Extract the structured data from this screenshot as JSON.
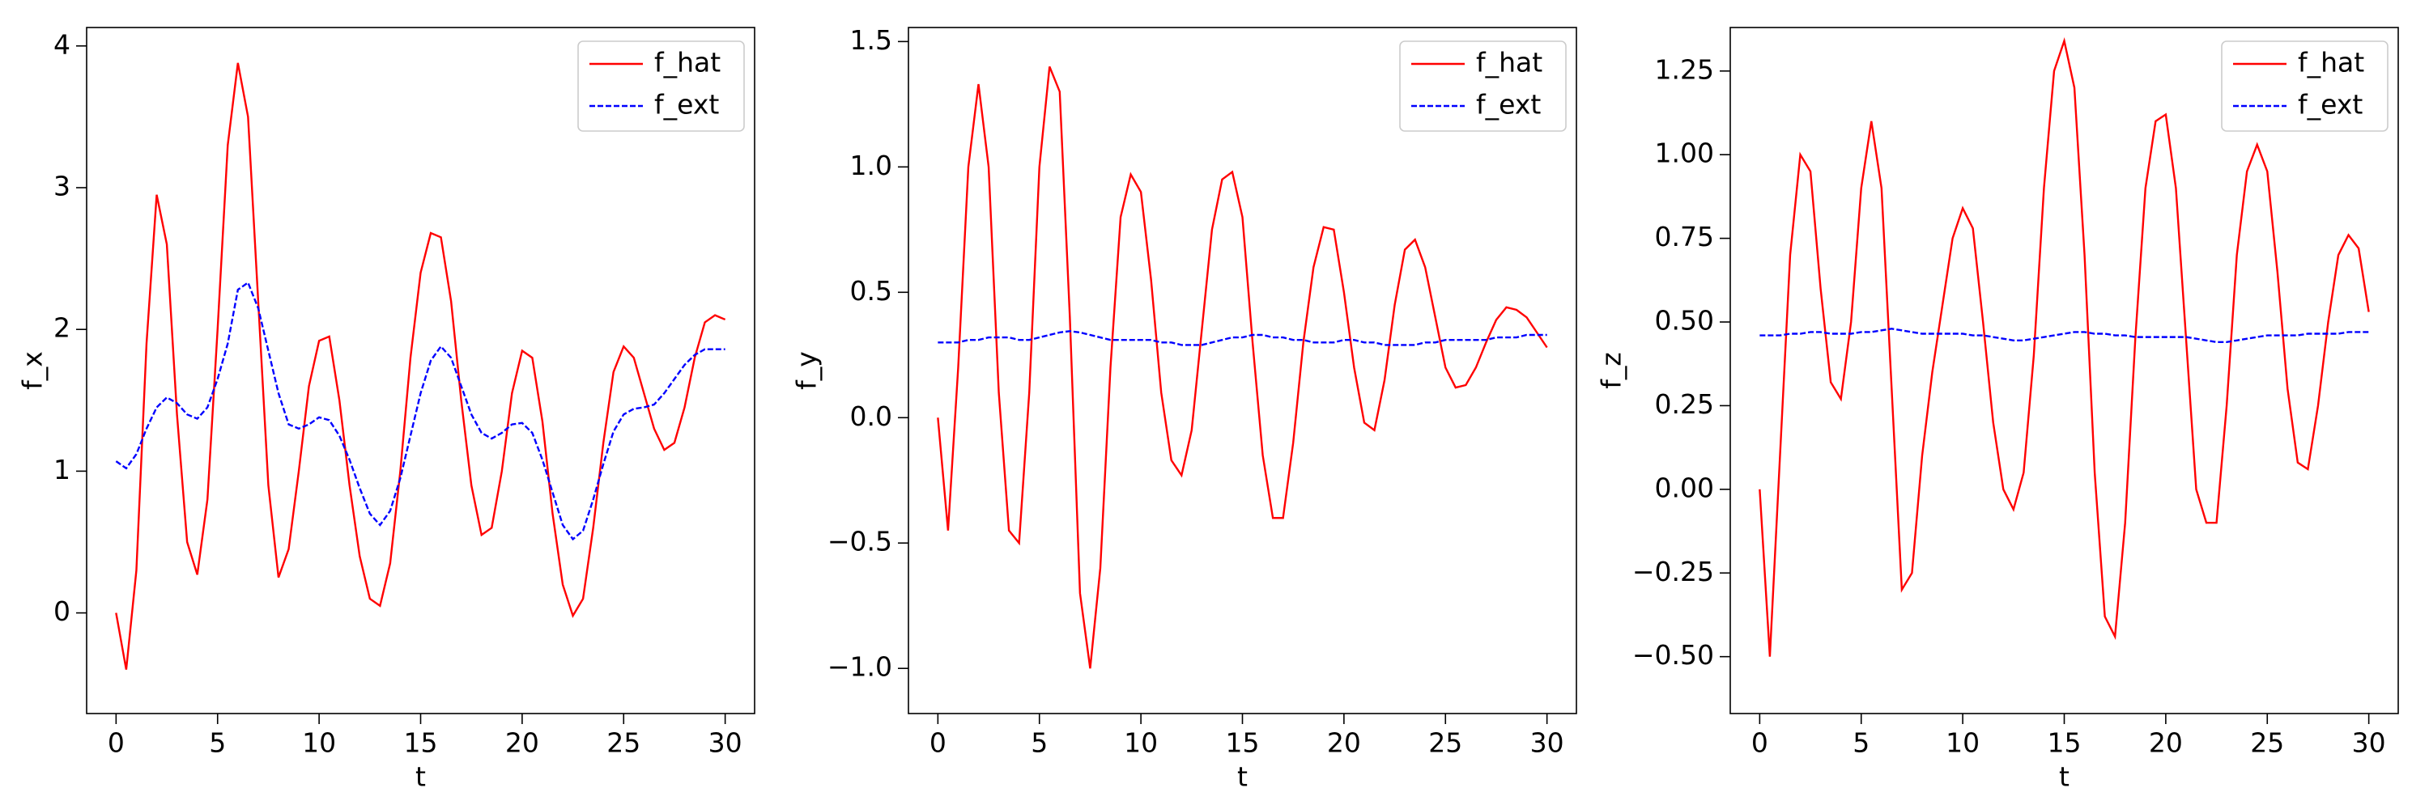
{
  "chart_data": [
    {
      "type": "line",
      "xlabel": "t",
      "ylabel": "f_x",
      "legend": "upper right",
      "x": [
        0,
        0.5,
        1,
        1.5,
        2,
        2.5,
        3,
        3.5,
        4,
        4.5,
        5,
        5.5,
        6,
        6.5,
        7,
        7.5,
        8,
        8.5,
        9,
        9.5,
        10,
        10.5,
        11,
        11.5,
        12,
        12.5,
        13,
        13.5,
        14,
        14.5,
        15,
        15.5,
        16,
        16.5,
        17,
        17.5,
        18,
        18.5,
        19,
        19.5,
        20,
        20.5,
        21,
        21.5,
        22,
        22.5,
        23,
        23.5,
        24,
        24.5,
        25,
        25.5,
        26,
        26.5,
        27,
        27.5,
        28,
        28.5,
        29,
        29.5,
        30
      ],
      "series": [
        {
          "name": "f_hat",
          "color": "#ff0000",
          "linestyle": "solid",
          "values": [
            0,
            -0.4,
            0.3,
            1.9,
            2.95,
            2.6,
            1.4,
            0.5,
            0.27,
            0.8,
            2.0,
            3.3,
            3.88,
            3.5,
            2.2,
            0.9,
            0.25,
            0.45,
            1.0,
            1.6,
            1.92,
            1.95,
            1.5,
            0.9,
            0.4,
            0.1,
            0.05,
            0.35,
            1.0,
            1.8,
            2.4,
            2.68,
            2.65,
            2.2,
            1.5,
            0.9,
            0.55,
            0.6,
            1.0,
            1.55,
            1.85,
            1.8,
            1.35,
            0.7,
            0.2,
            -0.02,
            0.1,
            0.6,
            1.2,
            1.7,
            1.88,
            1.8,
            1.55,
            1.3,
            1.15,
            1.2,
            1.45,
            1.8,
            2.05,
            2.1,
            2.07
          ]
        },
        {
          "name": "f_ext",
          "color": "#0000ff",
          "linestyle": "dashed",
          "values": [
            1.07,
            1.02,
            1.12,
            1.3,
            1.45,
            1.52,
            1.48,
            1.4,
            1.37,
            1.45,
            1.65,
            1.9,
            2.28,
            2.33,
            2.15,
            1.85,
            1.55,
            1.33,
            1.3,
            1.33,
            1.38,
            1.36,
            1.25,
            1.08,
            0.88,
            0.7,
            0.62,
            0.72,
            0.95,
            1.25,
            1.55,
            1.78,
            1.88,
            1.8,
            1.6,
            1.4,
            1.27,
            1.23,
            1.27,
            1.33,
            1.34,
            1.27,
            1.08,
            0.85,
            0.62,
            0.52,
            0.58,
            0.8,
            1.05,
            1.28,
            1.4,
            1.44,
            1.45,
            1.47,
            1.55,
            1.65,
            1.75,
            1.82,
            1.86,
            1.86,
            1.86
          ]
        }
      ],
      "xlim": [
        -1.45,
        31.45
      ],
      "ylim": [
        -0.71,
        4.13
      ],
      "xticks": [
        0,
        5,
        10,
        15,
        20,
        25,
        30
      ],
      "yticks": [
        0,
        1,
        2,
        3,
        4
      ]
    },
    {
      "type": "line",
      "xlabel": "t",
      "ylabel": "f_y",
      "legend": "upper right",
      "x": [
        0,
        0.5,
        1,
        1.5,
        2,
        2.5,
        3,
        3.5,
        4,
        4.5,
        5,
        5.5,
        6,
        6.5,
        7,
        7.5,
        8,
        8.5,
        9,
        9.5,
        10,
        10.5,
        11,
        11.5,
        12,
        12.5,
        13,
        13.5,
        14,
        14.5,
        15,
        15.5,
        16,
        16.5,
        17,
        17.5,
        18,
        18.5,
        19,
        19.5,
        20,
        20.5,
        21,
        21.5,
        22,
        22.5,
        23,
        23.5,
        24,
        24.5,
        25,
        25.5,
        26,
        26.5,
        27,
        27.5,
        28,
        28.5,
        29,
        29.5,
        30
      ],
      "series": [
        {
          "name": "f_hat",
          "color": "#ff0000",
          "linestyle": "solid",
          "values": [
            0,
            -0.45,
            0.2,
            1.0,
            1.33,
            1.0,
            0.1,
            -0.45,
            -0.5,
            0.1,
            1.0,
            1.4,
            1.3,
            0.4,
            -0.7,
            -1.0,
            -0.6,
            0.2,
            0.8,
            0.97,
            0.9,
            0.55,
            0.1,
            -0.17,
            -0.23,
            -0.05,
            0.35,
            0.75,
            0.95,
            0.98,
            0.8,
            0.3,
            -0.15,
            -0.4,
            -0.4,
            -0.1,
            0.3,
            0.6,
            0.76,
            0.75,
            0.5,
            0.2,
            -0.02,
            -0.05,
            0.15,
            0.45,
            0.67,
            0.71,
            0.6,
            0.4,
            0.2,
            0.12,
            0.13,
            0.2,
            0.3,
            0.39,
            0.44,
            0.43,
            0.4,
            0.34,
            0.28
          ]
        },
        {
          "name": "f_ext",
          "color": "#0000ff",
          "linestyle": "dashed",
          "values": [
            0.3,
            0.3,
            0.3,
            0.31,
            0.31,
            0.32,
            0.32,
            0.32,
            0.31,
            0.31,
            0.32,
            0.33,
            0.34,
            0.345,
            0.34,
            0.33,
            0.32,
            0.31,
            0.31,
            0.31,
            0.31,
            0.31,
            0.3,
            0.3,
            0.29,
            0.29,
            0.29,
            0.3,
            0.31,
            0.32,
            0.32,
            0.33,
            0.33,
            0.32,
            0.32,
            0.31,
            0.31,
            0.3,
            0.3,
            0.3,
            0.31,
            0.31,
            0.3,
            0.3,
            0.29,
            0.29,
            0.29,
            0.29,
            0.3,
            0.3,
            0.31,
            0.31,
            0.31,
            0.31,
            0.31,
            0.32,
            0.32,
            0.32,
            0.33,
            0.33,
            0.33
          ]
        }
      ],
      "xlim": [
        -1.45,
        31.45
      ],
      "ylim": [
        -1.18,
        1.556
      ],
      "xticks": [
        0,
        5,
        10,
        15,
        20,
        25,
        30
      ],
      "yticks": [
        {
          "value": -1.0,
          "label": "−1.0"
        },
        {
          "value": -0.5,
          "label": "−0.5"
        },
        {
          "value": 0.0,
          "label": "0.0"
        },
        0.5,
        {
          "value": 1.0,
          "label": "1.0"
        },
        1.5
      ]
    },
    {
      "type": "line",
      "xlabel": "t",
      "ylabel": "f_z",
      "legend": "upper right",
      "x": [
        0,
        0.5,
        1,
        1.5,
        2,
        2.5,
        3,
        3.5,
        4,
        4.5,
        5,
        5.5,
        6,
        6.5,
        7,
        7.5,
        8,
        8.5,
        9,
        9.5,
        10,
        10.5,
        11,
        11.5,
        12,
        12.5,
        13,
        13.5,
        14,
        14.5,
        15,
        15.5,
        16,
        16.5,
        17,
        17.5,
        18,
        18.5,
        19,
        19.5,
        20,
        20.5,
        21,
        21.5,
        22,
        22.5,
        23,
        23.5,
        24,
        24.5,
        25,
        25.5,
        26,
        26.5,
        27,
        27.5,
        28,
        28.5,
        29,
        29.5,
        30
      ],
      "series": [
        {
          "name": "f_hat",
          "color": "#ff0000",
          "linestyle": "solid",
          "values": [
            0,
            -0.5,
            0.1,
            0.7,
            1.0,
            0.95,
            0.6,
            0.32,
            0.27,
            0.5,
            0.9,
            1.1,
            0.9,
            0.3,
            -0.3,
            -0.25,
            0.1,
            0.35,
            0.55,
            0.75,
            0.84,
            0.78,
            0.5,
            0.2,
            0.0,
            -0.06,
            0.05,
            0.4,
            0.9,
            1.25,
            1.34,
            1.2,
            0.7,
            0.05,
            -0.38,
            -0.44,
            -0.1,
            0.45,
            0.9,
            1.1,
            1.12,
            0.9,
            0.45,
            0.0,
            -0.1,
            -0.1,
            0.25,
            0.7,
            0.95,
            1.03,
            0.95,
            0.65,
            0.3,
            0.08,
            0.06,
            0.25,
            0.5,
            0.7,
            0.76,
            0.72,
            0.53
          ]
        },
        {
          "name": "f_ext",
          "color": "#0000ff",
          "linestyle": "dashed",
          "values": [
            0.46,
            0.46,
            0.46,
            0.465,
            0.465,
            0.47,
            0.47,
            0.465,
            0.465,
            0.465,
            0.47,
            0.47,
            0.475,
            0.48,
            0.475,
            0.47,
            0.465,
            0.465,
            0.465,
            0.465,
            0.465,
            0.46,
            0.46,
            0.455,
            0.45,
            0.445,
            0.445,
            0.45,
            0.455,
            0.46,
            0.465,
            0.47,
            0.47,
            0.465,
            0.465,
            0.46,
            0.46,
            0.455,
            0.455,
            0.455,
            0.455,
            0.455,
            0.455,
            0.45,
            0.445,
            0.44,
            0.44,
            0.445,
            0.45,
            0.455,
            0.46,
            0.46,
            0.46,
            0.46,
            0.465,
            0.465,
            0.465,
            0.465,
            0.47,
            0.47,
            0.47
          ]
        }
      ],
      "xlim": [
        -1.45,
        31.45
      ],
      "ylim": [
        -0.67,
        1.38
      ],
      "xticks": [
        0,
        5,
        10,
        15,
        20,
        25,
        30
      ],
      "yticks": [
        {
          "value": -0.5,
          "label": "−0.50"
        },
        {
          "value": -0.25,
          "label": "−0.25"
        },
        {
          "value": 0.0,
          "label": "0.00"
        },
        0.25,
        {
          "value": 0.5,
          "label": "0.50"
        },
        0.75,
        {
          "value": 1.0,
          "label": "1.00"
        },
        1.25
      ]
    }
  ]
}
